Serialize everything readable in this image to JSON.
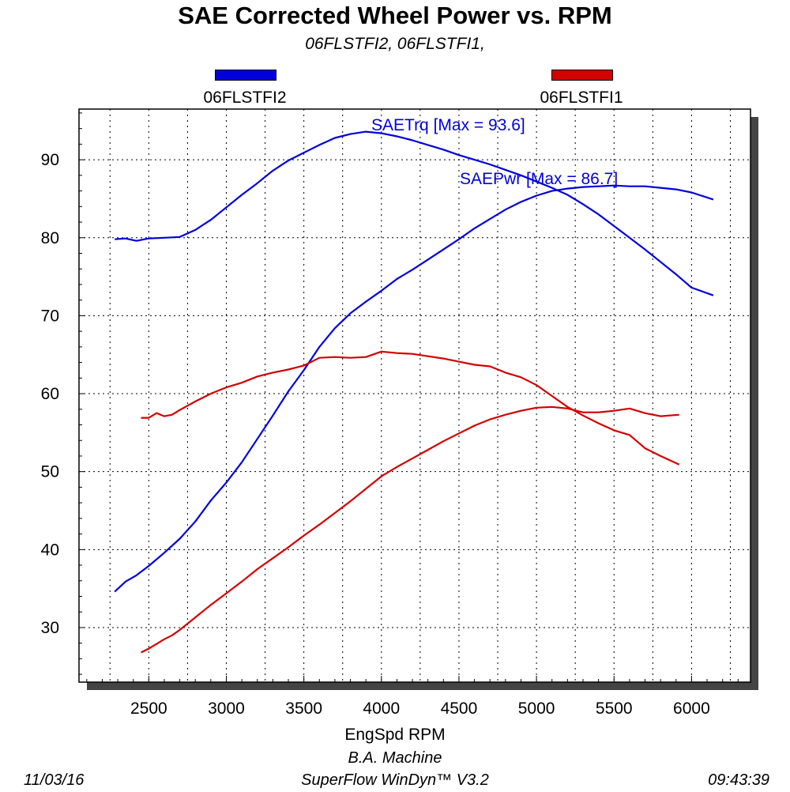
{
  "header": {
    "title": "SAE Corrected Wheel Power vs. RPM",
    "subtitle": "06FLSTFI2, 06FLSTFI1,"
  },
  "legend": [
    {
      "label": "06FLSTFI2",
      "color": "#0000dd"
    },
    {
      "label": "06FLSTFI1",
      "color": "#d40000"
    }
  ],
  "annotations": {
    "trq": "SAETrq [Max = 93.6]",
    "pwr": "SAEPwr [Max = 86.7]"
  },
  "footer": {
    "date": "11/03/16",
    "shop": "B.A. Machine",
    "software": "SuperFlow WinDyn™ V3.2",
    "time": "09:43:39"
  },
  "chart_data": {
    "type": "line",
    "title": "SAE Corrected Wheel Power vs. RPM",
    "subtitle": "06FLSTFI2, 06FLSTFI1,",
    "xlabel": "EngSpd RPM",
    "ylabel": "",
    "xlim": [
      2050,
      6380
    ],
    "ylim": [
      23,
      96.5
    ],
    "x_ticks": [
      2500,
      3000,
      3500,
      4000,
      4500,
      5000,
      5500,
      6000
    ],
    "y_ticks": [
      30,
      40,
      50,
      60,
      70,
      80,
      90
    ],
    "grid": true,
    "legend": "top",
    "series": [
      {
        "name": "06FLSTFI2",
        "color": "#0000dd",
        "x": [
          2280,
          2350,
          2420,
          2500,
          2600,
          2700,
          2800,
          2900,
          3000,
          3100,
          3200,
          3300,
          3400,
          3500,
          3600,
          3700,
          3800,
          3900,
          4000,
          4100,
          4200,
          4300,
          4400,
          4500,
          4600,
          4700,
          4800,
          4900,
          5000,
          5100,
          5200,
          5300,
          5400,
          5500,
          5600,
          5700,
          5800,
          5900,
          6000,
          6140
        ],
        "y": [
          79.8,
          79.9,
          79.6,
          79.9,
          80.0,
          80.1,
          81.0,
          82.3,
          83.9,
          85.5,
          87.0,
          88.6,
          89.9,
          90.9,
          91.9,
          92.8,
          93.3,
          93.6,
          93.4,
          93.0,
          92.5,
          91.9,
          91.3,
          90.6,
          90.0,
          89.4,
          88.7,
          88.0,
          87.2,
          86.4,
          85.5,
          84.3,
          83.0,
          81.5,
          80.0,
          78.5,
          76.9,
          75.3,
          73.6,
          72.6
        ]
      },
      {
        "name": "06FLSTFI2",
        "color": "#0000dd",
        "x": [
          2280,
          2350,
          2420,
          2500,
          2600,
          2700,
          2800,
          2900,
          3000,
          3100,
          3200,
          3300,
          3400,
          3500,
          3600,
          3700,
          3800,
          3900,
          4000,
          4100,
          4200,
          4300,
          4400,
          4500,
          4600,
          4700,
          4800,
          4900,
          5000,
          5100,
          5200,
          5300,
          5400,
          5500,
          5600,
          5700,
          5800,
          5900,
          6000,
          6140
        ],
        "y": [
          34.6,
          35.9,
          36.7,
          37.9,
          39.6,
          41.4,
          43.6,
          46.3,
          48.6,
          51.2,
          54.2,
          57.2,
          60.3,
          63.0,
          66.0,
          68.4,
          70.3,
          71.8,
          73.2,
          74.7,
          75.9,
          77.2,
          78.5,
          79.8,
          81.2,
          82.4,
          83.6,
          84.6,
          85.4,
          86.0,
          86.3,
          86.5,
          86.6,
          86.7,
          86.6,
          86.6,
          86.4,
          86.2,
          85.8,
          84.9
        ]
      },
      {
        "name": "06FLSTFI1",
        "color": "#d40000",
        "x": [
          2450,
          2500,
          2550,
          2600,
          2650,
          2700,
          2800,
          2900,
          3000,
          3100,
          3200,
          3300,
          3400,
          3500,
          3600,
          3700,
          3800,
          3900,
          4000,
          4100,
          4200,
          4300,
          4400,
          4500,
          4600,
          4700,
          4800,
          4900,
          5000,
          5100,
          5200,
          5300,
          5400,
          5500,
          5600,
          5700,
          5800,
          5920
        ],
        "y": [
          56.9,
          56.9,
          57.5,
          57.1,
          57.3,
          57.9,
          59.0,
          60.0,
          60.8,
          61.4,
          62.2,
          62.7,
          63.1,
          63.6,
          64.6,
          64.7,
          64.6,
          64.7,
          65.4,
          65.2,
          65.1,
          64.8,
          64.5,
          64.1,
          63.7,
          63.5,
          62.7,
          62.1,
          61.1,
          59.7,
          58.3,
          57.2,
          56.2,
          55.3,
          54.7,
          53.0,
          52.0,
          50.9
        ]
      },
      {
        "name": "06FLSTFI1",
        "color": "#d40000",
        "x": [
          2450,
          2500,
          2550,
          2600,
          2650,
          2700,
          2800,
          2900,
          3000,
          3100,
          3200,
          3300,
          3400,
          3500,
          3600,
          3700,
          3800,
          3900,
          4000,
          4100,
          4200,
          4300,
          4400,
          4500,
          4600,
          4700,
          4800,
          4900,
          5000,
          5100,
          5200,
          5300,
          5400,
          5500,
          5600,
          5700,
          5800,
          5920
        ],
        "y": [
          26.8,
          27.3,
          27.9,
          28.5,
          29.0,
          29.7,
          31.3,
          32.9,
          34.4,
          35.9,
          37.5,
          38.9,
          40.3,
          41.8,
          43.2,
          44.7,
          46.2,
          47.8,
          49.4,
          50.6,
          51.7,
          52.8,
          53.9,
          54.9,
          55.9,
          56.7,
          57.3,
          57.8,
          58.2,
          58.3,
          58.1,
          57.6,
          57.6,
          57.8,
          58.1,
          57.5,
          57.1,
          57.3
        ]
      }
    ]
  }
}
